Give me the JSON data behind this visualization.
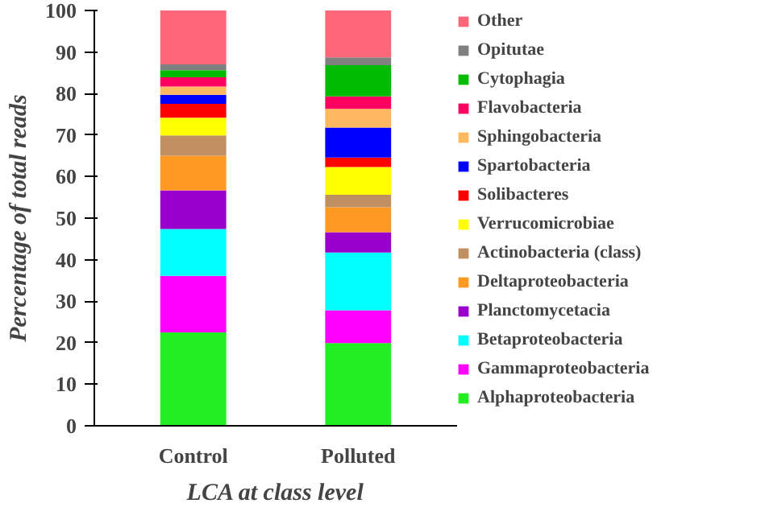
{
  "chart_data": {
    "type": "bar",
    "stacked": true,
    "xlabel": "LCA at class level",
    "ylabel": "Percentage of total reads",
    "categories": [
      "Control",
      "Polluted"
    ],
    "ylim": [
      0,
      100
    ],
    "yticks": [
      0,
      10,
      20,
      30,
      40,
      50,
      60,
      70,
      80,
      90,
      100
    ],
    "grid": false,
    "legend": "right",
    "series": [
      {
        "name": "Alphaproteobacteria",
        "color": "#22ee22",
        "values": [
          22.5,
          19.9
        ]
      },
      {
        "name": "Gammaproteobacteria",
        "color": "#ff00ff",
        "values": [
          13.6,
          7.9
        ]
      },
      {
        "name": "Betaproteobacteria",
        "color": "#00ffff",
        "values": [
          11.3,
          13.9
        ]
      },
      {
        "name": "Planctomycetacia",
        "color": "#9900cc",
        "values": [
          9.3,
          4.9
        ]
      },
      {
        "name": "Deltaproteobacteria",
        "color": "#ff9922",
        "values": [
          8.3,
          6.0
        ]
      },
      {
        "name": "Actinobacteria (class)",
        "color": "#c09060",
        "values": [
          4.9,
          3.0
        ]
      },
      {
        "name": "Verrucomicrobiae",
        "color": "#ffff00",
        "values": [
          4.3,
          6.7
        ]
      },
      {
        "name": "Solibacteres",
        "color": "#ff0000",
        "values": [
          3.3,
          2.3
        ]
      },
      {
        "name": "Spartobacteria",
        "color": "#0000ff",
        "values": [
          2.2,
          7.2
        ]
      },
      {
        "name": "Sphingobacteria",
        "color": "#ffb860",
        "values": [
          2.0,
          4.5
        ]
      },
      {
        "name": "Flavobacteria",
        "color": "#ff0060",
        "values": [
          2.2,
          3.0
        ]
      },
      {
        "name": "Cytophagia",
        "color": "#00bb00",
        "values": [
          1.7,
          7.5
        ]
      },
      {
        "name": "Opitutae",
        "color": "#808080",
        "values": [
          1.4,
          1.9
        ]
      },
      {
        "name": "Other",
        "color": "#ff6677",
        "values": [
          13.0,
          11.3
        ]
      }
    ]
  }
}
